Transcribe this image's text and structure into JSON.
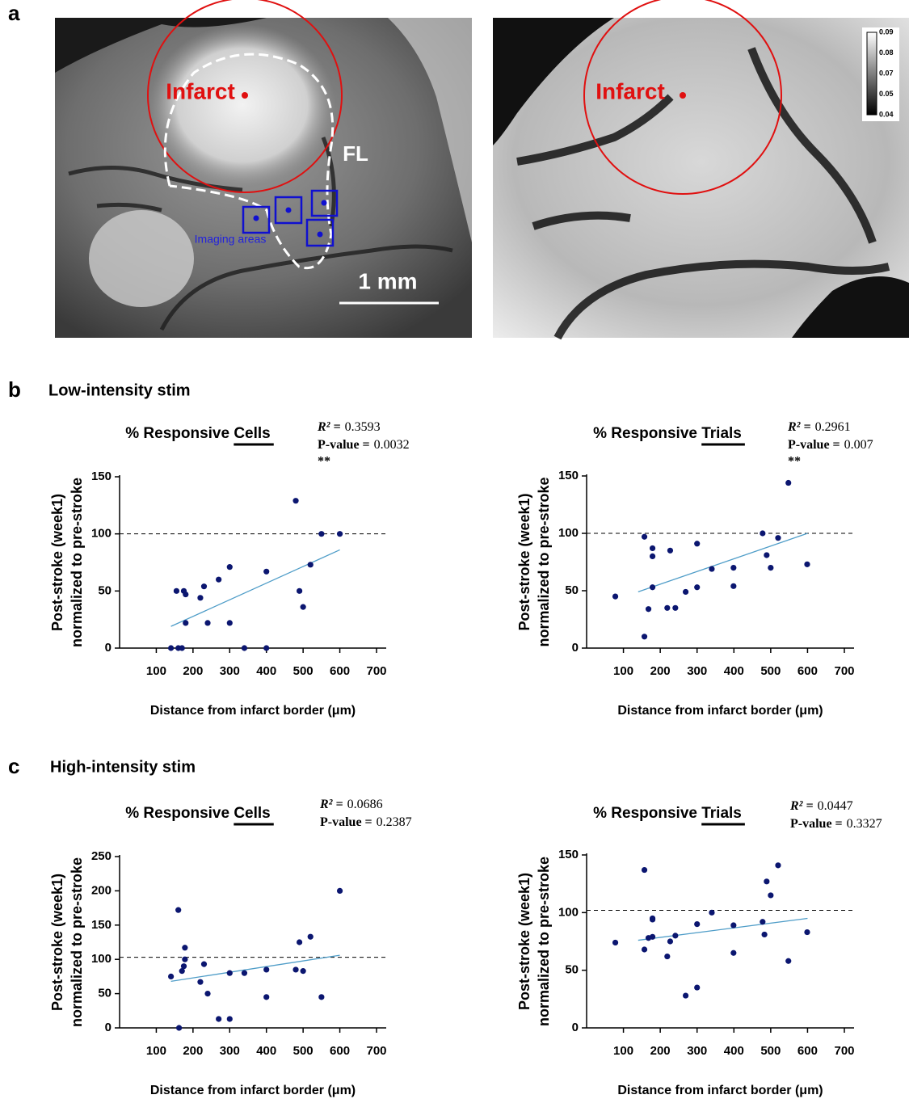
{
  "figure": {
    "panel_labels": [
      "a",
      "b",
      "c"
    ],
    "row_titles": [
      "Low-intensity stim",
      "High-intensity stim"
    ],
    "image_left": {
      "infarct": "Infarct",
      "region": "FL",
      "imaging": "Imaging areas",
      "scale": "1 mm"
    },
    "image_right": {
      "infarct": "Infarct",
      "colorbar_labels": [
        0.09,
        0.08,
        0.07,
        0.05,
        0.04
      ]
    }
  },
  "chart_data": [
    {
      "type": "scatter",
      "title": "% Responsive Cells",
      "x_label": "Distance from infarct border (μm)",
      "y_label": [
        "Post-stroke (week1)",
        "normalized to pre-stroke"
      ],
      "x": [
        140,
        155,
        160,
        170,
        175,
        180,
        180,
        220,
        230,
        240,
        270,
        300,
        300,
        340,
        400,
        400,
        480,
        490,
        500,
        520,
        550,
        600
      ],
      "values": [
        0,
        50,
        0,
        0,
        50,
        47,
        22,
        44,
        54,
        22,
        60,
        71,
        22,
        0,
        67,
        0,
        129,
        50,
        36,
        73,
        100,
        100
      ],
      "color": "#0b1670",
      "trendline": {
        "x": [
          140,
          600
        ],
        "values": [
          19,
          86
        ],
        "color": "#4f9dc8"
      },
      "reference_line": 100,
      "annotations": {
        "r2_label": "R² =",
        "r2": 0.3593,
        "p_label": "P-value =",
        "p": 0.0032,
        "significance": "**"
      },
      "xlim": [
        0,
        700
      ],
      "xticks": [
        100,
        200,
        300,
        400,
        500,
        600,
        700
      ],
      "ylim": [
        0,
        150
      ],
      "yticks": [
        0,
        50,
        100,
        150
      ]
    },
    {
      "type": "scatter",
      "title": "% Responsive Trials",
      "x_label": "Distance from infarct border (μm)",
      "y_label": [
        "Post-stroke (week1)",
        "normalized to pre-stroke"
      ],
      "x": [
        78,
        157,
        157,
        168,
        179,
        179,
        179,
        219,
        227,
        241,
        269,
        300,
        300,
        340,
        399,
        399,
        478,
        489,
        500,
        520,
        548,
        599
      ],
      "values": [
        45,
        97,
        10,
        34,
        87,
        80,
        53,
        35,
        85,
        35,
        49,
        91,
        53,
        69,
        70,
        54,
        100,
        81,
        70,
        96,
        144,
        73
      ],
      "color": "#0b1670",
      "trendline": {
        "x": [
          140,
          600
        ],
        "values": [
          49,
          100
        ],
        "color": "#4f9dc8"
      },
      "reference_line": 100,
      "annotations": {
        "r2_label": "R² =",
        "r2": 0.2961,
        "p_label": "P-value =",
        "p": 0.007,
        "significance": "**"
      },
      "xlim": [
        0,
        700
      ],
      "xticks": [
        100,
        200,
        300,
        400,
        500,
        600,
        700
      ],
      "ylim": [
        0,
        150
      ],
      "yticks": [
        0,
        50,
        100,
        150
      ]
    },
    {
      "type": "scatter",
      "title": "% Responsive Cells",
      "x_label": "Distance from infarct border (μm)",
      "y_label": [
        "Post-stroke (week1)",
        "normalized to pre-stroke"
      ],
      "x": [
        140,
        160,
        162,
        170,
        175,
        178,
        178,
        220,
        230,
        240,
        270,
        300,
        300,
        340,
        400,
        400,
        480,
        490,
        500,
        520,
        550,
        600
      ],
      "values": [
        75,
        172,
        0,
        83,
        90,
        117,
        100,
        67,
        93,
        50,
        13,
        80,
        13,
        80,
        85,
        45,
        85,
        125,
        83,
        133,
        45,
        200
      ],
      "color": "#0b1670",
      "trendline": {
        "x": [
          140,
          600
        ],
        "values": [
          68,
          106
        ],
        "color": "#4f9dc8"
      },
      "reference_line": 103,
      "annotations": {
        "r2_label": "R² =",
        "r2": 0.0686,
        "p_label": "P-value =",
        "p": 0.2387
      },
      "xlim": [
        0,
        700
      ],
      "xticks": [
        100,
        200,
        300,
        400,
        500,
        600,
        700
      ],
      "ylim": [
        0,
        250
      ],
      "yticks": [
        0,
        50,
        100,
        150,
        200,
        250
      ]
    },
    {
      "type": "scatter",
      "title": "% Responsive Trials",
      "x_label": "Distance from infarct border (μm)",
      "y_label": [
        "Post-stroke (week1)",
        "normalized to pre-stroke"
      ],
      "x": [
        78,
        157,
        157,
        168,
        179,
        179,
        179,
        219,
        227,
        241,
        269,
        300,
        300,
        340,
        399,
        399,
        478,
        483,
        489,
        500,
        520,
        548,
        599
      ],
      "values": [
        74,
        137,
        68,
        78,
        95,
        94,
        79,
        62,
        75,
        80,
        28,
        90,
        35,
        100,
        89,
        65,
        92,
        81,
        127,
        115,
        141,
        58,
        83
      ],
      "color": "#0b1670",
      "trendline": {
        "x": [
          140,
          600
        ],
        "values": [
          76,
          95
        ],
        "color": "#4f9dc8"
      },
      "reference_line": 102,
      "annotations": {
        "r2_label": "R² =",
        "r2": 0.0447,
        "p_label": "P-value =",
        "p": 0.3327
      },
      "xlim": [
        0,
        700
      ],
      "xticks": [
        100,
        200,
        300,
        400,
        500,
        600,
        700
      ],
      "ylim": [
        0,
        150
      ],
      "yticks": [
        0,
        50,
        100,
        150
      ]
    }
  ]
}
